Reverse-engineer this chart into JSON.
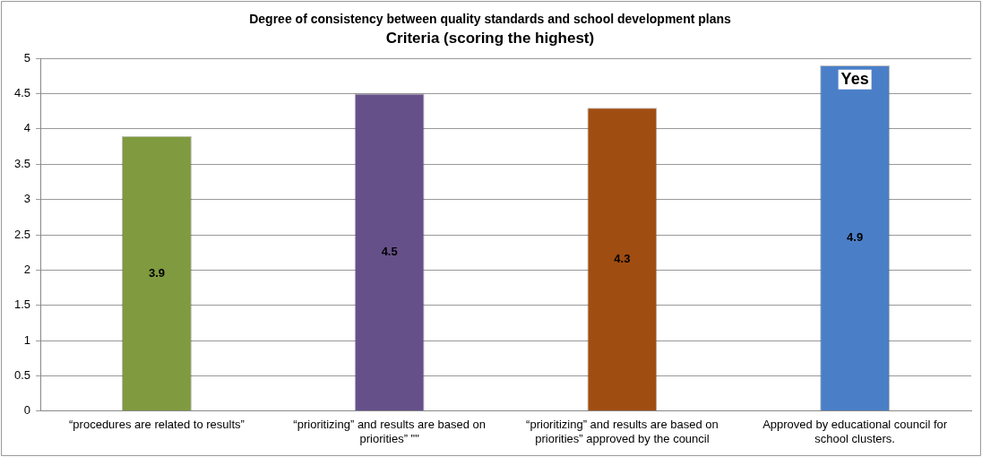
{
  "chart_data": {
    "type": "bar",
    "title": "Degree of consistency between quality standards and school development plans",
    "subtitle": "Criteria (scoring the highest)",
    "categories": [
      "“procedures are related to results”",
      "“prioritizing” and results are based on priorities” \"\"",
      "“prioritizing” and results are based on priorities” approved by the council",
      "Approved by educational council for school clusters."
    ],
    "values": [
      3.9,
      4.5,
      4.3,
      4.9
    ],
    "colors": [
      "#7f9a3f",
      "#66508a",
      "#a04d12",
      "#4a7fc8"
    ],
    "ylim": [
      0,
      5
    ],
    "yticks": [
      0,
      0.5,
      1,
      1.5,
      2,
      2.5,
      3,
      3.5,
      4,
      4.5,
      5
    ],
    "grid": "y",
    "legend": false,
    "data_labels": true,
    "annotations": [
      {
        "text": "Yes",
        "x": "Approved by educational council for school clusters.",
        "y": 4.7
      }
    ]
  }
}
